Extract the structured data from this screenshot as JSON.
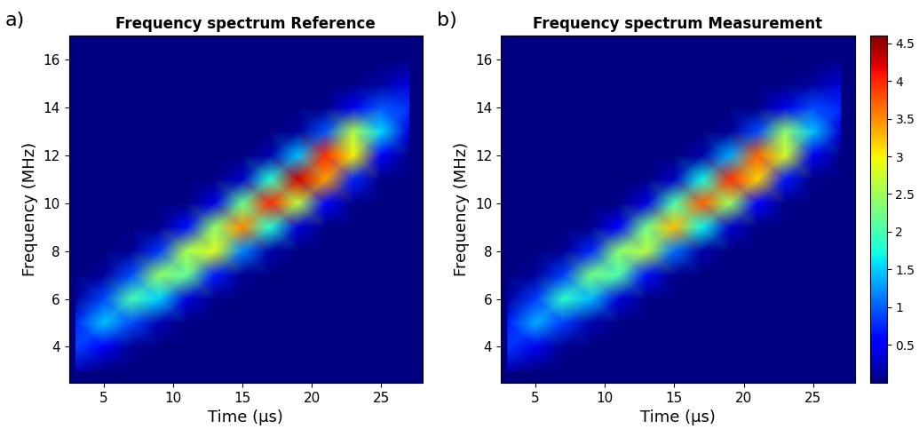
{
  "chart_data": [
    {
      "type": "heatmap",
      "panel_label": "a)",
      "title": "Frequency spectrum Reference",
      "x_label": "Time (µs)",
      "y_label": "Frequency (MHz)",
      "color": "jet",
      "xlim": [
        2.5,
        28
      ],
      "ylim": [
        2.5,
        17
      ],
      "xticks": [
        5,
        10,
        15,
        20,
        25
      ],
      "yticks": [
        4,
        6,
        8,
        10,
        12,
        14,
        16
      ],
      "x": [
        3,
        5,
        7,
        9,
        11,
        13,
        15,
        17,
        19,
        21,
        23,
        25,
        27
      ],
      "y": [
        3,
        4,
        5,
        6,
        7,
        8,
        9,
        10,
        11,
        12,
        13,
        14,
        15,
        16
      ],
      "cells": [
        [
          0.22,
          0.03,
          0,
          0,
          0,
          0,
          0,
          0,
          0,
          0,
          0,
          0,
          0
        ],
        [
          0.88,
          0.49,
          0.09,
          0,
          0,
          0,
          0,
          0,
          0,
          0,
          0,
          0,
          0
        ],
        [
          0.76,
          1.45,
          0.92,
          0.2,
          0.02,
          0,
          0,
          0,
          0,
          0,
          0,
          0,
          0
        ],
        [
          0.14,
          0.91,
          2.0,
          1.52,
          0.39,
          0.04,
          0,
          0,
          0,
          0,
          0,
          0,
          0
        ],
        [
          0.01,
          0.12,
          0.92,
          2.42,
          2.19,
          0.69,
          0.08,
          0,
          0,
          0,
          0,
          0,
          0
        ],
        [
          0,
          0,
          0.09,
          0.81,
          2.56,
          2.82,
          1.17,
          0.18,
          0.01,
          0,
          0,
          0,
          0
        ],
        [
          0,
          0,
          0,
          0.06,
          0.63,
          2.42,
          3.49,
          1.83,
          0.35,
          0.02,
          0,
          0,
          0
        ],
        [
          0,
          0,
          0,
          0,
          0.03,
          0.43,
          2.19,
          4.0,
          2.67,
          0.61,
          0.04,
          0,
          0
        ],
        [
          0,
          0,
          0,
          0,
          0,
          0.02,
          0.29,
          1.83,
          4.26,
          3.4,
          0.73,
          0.04,
          0
        ],
        [
          0,
          0,
          0,
          0,
          0,
          0,
          0.01,
          0.18,
          1.43,
          3.97,
          3.0,
          0.52,
          0.04
        ],
        [
          0,
          0,
          0,
          0,
          0,
          0,
          0,
          0,
          0.1,
          0.97,
          2.57,
          1.55,
          0.37
        ],
        [
          0,
          0,
          0,
          0,
          0,
          0,
          0,
          0,
          0,
          0.05,
          0.46,
          0.97,
          0.8
        ],
        [
          0,
          0,
          0,
          0,
          0,
          0,
          0,
          0,
          0,
          0,
          0.02,
          0.13,
          0.37
        ],
        [
          0,
          0,
          0,
          0,
          0,
          0,
          0,
          0,
          0,
          0,
          0,
          0,
          0.04
        ]
      ]
    },
    {
      "type": "heatmap",
      "panel_label": "b)",
      "title": "Frequency spectrum Measurement",
      "x_label": "Time (µs)",
      "y_label": "Frequency (MHz)",
      "color": "jet",
      "xlim": [
        2.5,
        28
      ],
      "ylim": [
        2.5,
        17
      ],
      "xticks": [
        5,
        10,
        15,
        20,
        25
      ],
      "yticks": [
        4,
        6,
        8,
        10,
        12,
        14,
        16
      ],
      "x": [
        3,
        5,
        7,
        9,
        11,
        13,
        15,
        17,
        19,
        21,
        23,
        25,
        27
      ],
      "y": [
        3,
        4,
        5,
        6,
        7,
        8,
        9,
        10,
        11,
        12,
        13,
        14,
        15,
        16
      ],
      "cells": [
        [
          0.2,
          0.03,
          0,
          0,
          0,
          0,
          0,
          0,
          0,
          0,
          0,
          0,
          0
        ],
        [
          0.82,
          0.46,
          0.08,
          0,
          0,
          0,
          0,
          0,
          0,
          0,
          0,
          0,
          0
        ],
        [
          0.71,
          1.35,
          0.86,
          0.19,
          0.02,
          0,
          0,
          0,
          0,
          0,
          0,
          0,
          0
        ],
        [
          0.13,
          0.85,
          1.86,
          1.41,
          0.36,
          0.04,
          0,
          0,
          0,
          0,
          0,
          0,
          0
        ],
        [
          0.01,
          0.11,
          0.86,
          2.25,
          2.04,
          0.64,
          0.07,
          0,
          0,
          0,
          0,
          0,
          0
        ],
        [
          0,
          0,
          0.08,
          0.75,
          2.38,
          2.62,
          1.09,
          0.17,
          0.01,
          0,
          0,
          0,
          0
        ],
        [
          0,
          0,
          0,
          0.06,
          0.59,
          2.25,
          3.25,
          1.7,
          0.33,
          0.02,
          0,
          0,
          0
        ],
        [
          0,
          0,
          0,
          0,
          0.03,
          0.4,
          2.04,
          3.72,
          2.48,
          0.57,
          0.04,
          0,
          0
        ],
        [
          0,
          0,
          0,
          0,
          0,
          0.02,
          0.27,
          1.7,
          3.96,
          3.16,
          0.68,
          0.04,
          0
        ],
        [
          0,
          0,
          0,
          0,
          0,
          0,
          0.01,
          0.17,
          1.33,
          3.69,
          2.79,
          0.48,
          0.04
        ],
        [
          0,
          0,
          0,
          0,
          0,
          0,
          0,
          0,
          0.09,
          0.9,
          2.39,
          1.44,
          0.34
        ],
        [
          0,
          0,
          0,
          0,
          0,
          0,
          0,
          0,
          0,
          0.05,
          0.43,
          0.9,
          0.74
        ],
        [
          0,
          0,
          0,
          0,
          0,
          0,
          0,
          0,
          0,
          0,
          0.02,
          0.12,
          0.34
        ],
        [
          0,
          0,
          0,
          0,
          0,
          0,
          0,
          0,
          0,
          0,
          0,
          0,
          0.04
        ]
      ]
    }
  ],
  "colorbar": {
    "range": [
      0,
      4.6
    ],
    "ticks": [
      0.5,
      1,
      1.5,
      2,
      2.5,
      3,
      3.5,
      4,
      4.5
    ]
  }
}
